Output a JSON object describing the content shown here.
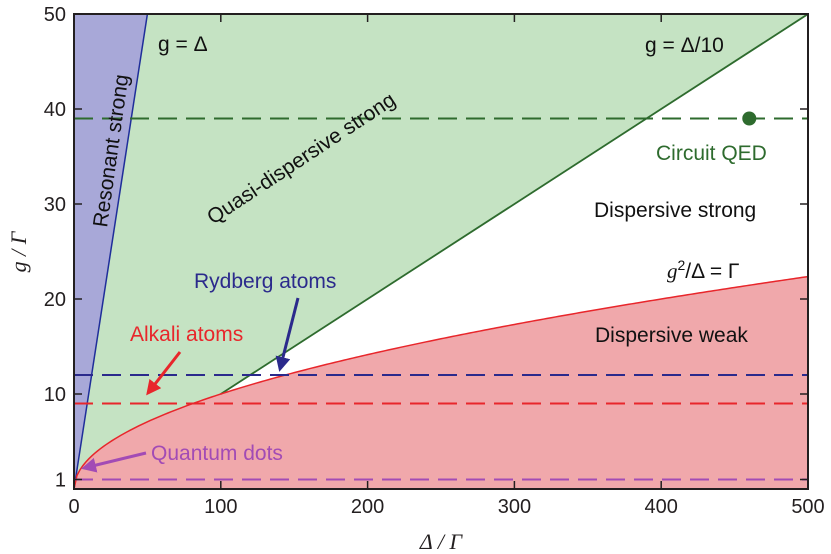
{
  "chart_data": {
    "type": "area",
    "xlabel": "Δ / Γ",
    "ylabel": "g / Γ",
    "xlim": [
      0,
      500
    ],
    "ylim": [
      0,
      50
    ],
    "x_ticks": [
      "0",
      "100",
      "200",
      "300",
      "400",
      "500"
    ],
    "y_ticks": [
      "1",
      "10",
      "20",
      "30",
      "40",
      "50"
    ],
    "grid": false,
    "boundaries": [
      {
        "label": "g = Δ",
        "equation": "g = Δ",
        "color": "#1f2e9a"
      },
      {
        "label": "g = Δ/10",
        "equation": "g = Δ/10",
        "color": "#2e6b2e"
      },
      {
        "label": "g²/Δ = Γ",
        "equation": "g^2 = Δ",
        "color": "#e8262b"
      }
    ],
    "regions": [
      {
        "label": "Resonant strong",
        "color": "#a8a8d8"
      },
      {
        "label": "Quasi-dispersive strong",
        "color": "#c5e3c3"
      },
      {
        "label": "Dispersive strong",
        "color": "#ffffff"
      },
      {
        "label": "Dispersive weak",
        "color": "#f0a8ab"
      }
    ],
    "reference_lines": [
      {
        "label": "Circuit QED",
        "y": 39,
        "color": "#2e6b2e"
      },
      {
        "label": "Rydberg atoms",
        "y": 12,
        "color": "#2b2a8c"
      },
      {
        "label": "Alkali atoms",
        "y": 9,
        "color": "#e8262b"
      },
      {
        "label": "Quantum dots",
        "y": 1,
        "color": "#a24bb5"
      }
    ],
    "points": [
      {
        "label": "Circuit QED",
        "x": 460,
        "y": 39,
        "color": "#2e6b2e"
      }
    ],
    "annotations": [
      {
        "text": "Rydberg atoms",
        "target": {
          "x": 140,
          "y": 12
        },
        "color": "#2b2a8c"
      },
      {
        "text": "Alkali atoms",
        "target": {
          "x": 48,
          "y": 9
        },
        "color": "#e8262b"
      },
      {
        "text": "Quantum dots",
        "target": {
          "x": 5,
          "y": 1
        },
        "color": "#a24bb5"
      }
    ]
  },
  "labels": {
    "g_eq_delta": "g = Δ",
    "g_eq_delta_10": "g = Δ/10",
    "g2": "g",
    "sup2": "2",
    "g2_rest": "/Δ = Γ",
    "resonant_strong": "Resonant strong",
    "quasi_dispersive": "Quasi-dispersive strong",
    "dispersive_strong": "Dispersive strong",
    "dispersive_weak": "Dispersive weak",
    "circuit_qed": "Circuit QED",
    "rydberg": "Rydberg atoms",
    "alkali": "Alkali atoms",
    "quantum_dots": "Quantum dots"
  }
}
